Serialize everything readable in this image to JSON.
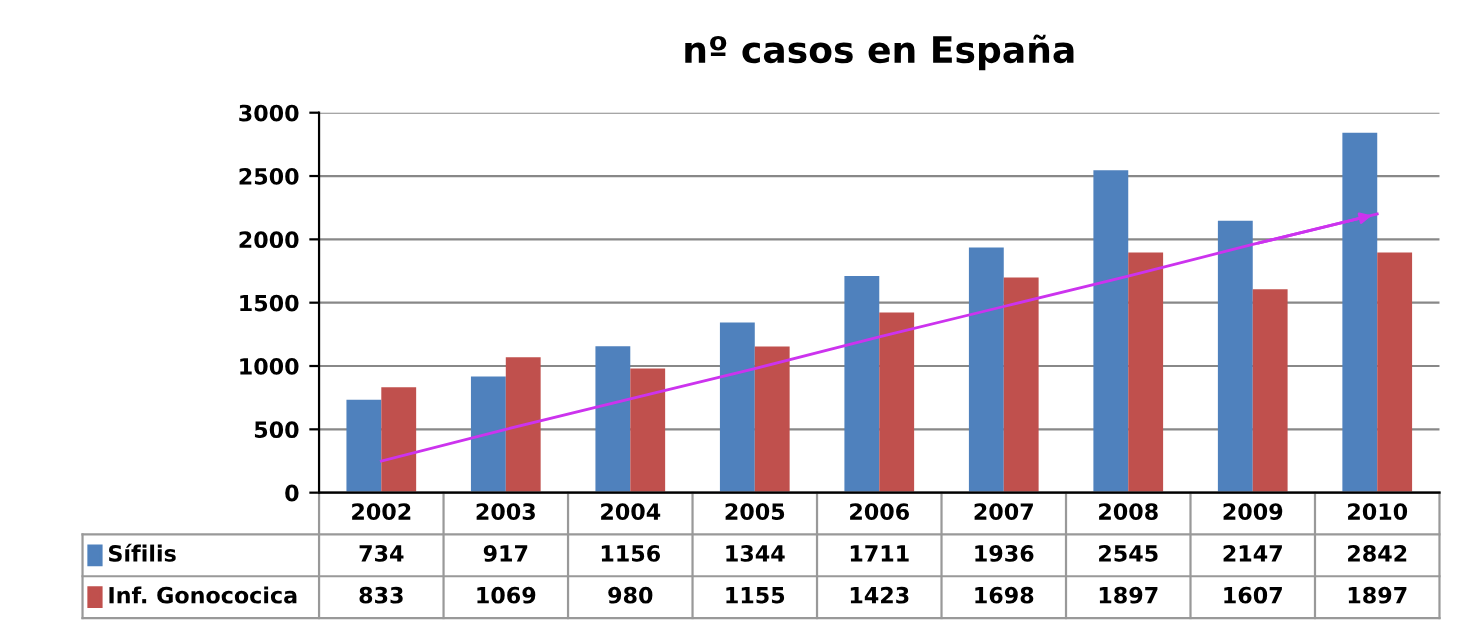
{
  "chart_data": {
    "type": "bar",
    "title": "nº casos en España",
    "categories": [
      "2002",
      "2003",
      "2004",
      "2005",
      "2006",
      "2007",
      "2008",
      "2009",
      "2010"
    ],
    "series": [
      {
        "name": "Sífilis",
        "color": "#4f81bd",
        "values": [
          734,
          917,
          1156,
          1344,
          1711,
          1936,
          2545,
          2147,
          2842
        ],
        "value_labels": [
          "734",
          "917",
          "1156",
          "1344",
          "1711",
          "1936",
          "2545",
          "2147",
          "2842"
        ]
      },
      {
        "name": "Inf. Gonococica",
        "color": "#c0504d",
        "values": [
          833,
          1069,
          980,
          1155,
          1423,
          1698,
          1897,
          1607,
          1897
        ],
        "value_labels": [
          "833",
          "1069",
          "980",
          "1155",
          "1423",
          "1698",
          "1897",
          "1607",
          "1897"
        ]
      },
      {
        "type": "line",
        "color": "#cc33ee",
        "values": [
          250,
          500,
          740,
          980,
          1230,
          1470,
          1710,
          1960,
          2200
        ]
      }
    ],
    "ylim": [
      0,
      3000
    ],
    "yticks": [
      0,
      500,
      1000,
      1500,
      2000,
      2500,
      3000
    ],
    "grid": "y",
    "legend": "bottom"
  }
}
